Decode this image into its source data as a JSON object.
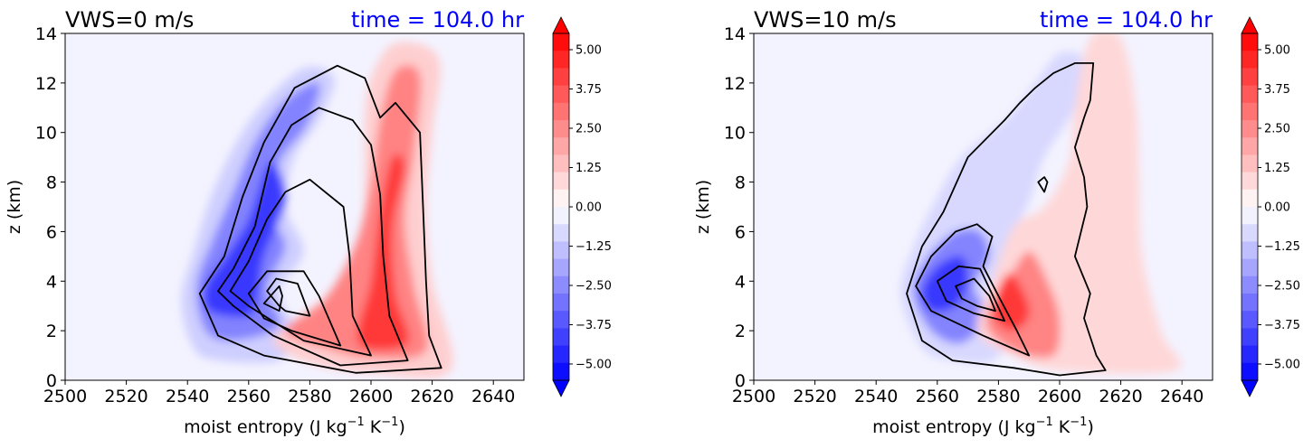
{
  "chart_data": [
    {
      "type": "heatmap",
      "title_left": "VWS=0 m/s",
      "title_right": "time = 104.0 hr",
      "xlabel": "moist entropy (J kg",
      "xlabel_sup1": "−1",
      "xlabel_mid": " K",
      "xlabel_sup2": "−1",
      "xlabel_end": ")",
      "ylabel": "z (km)",
      "xlim": [
        2500,
        2650
      ],
      "ylim": [
        0,
        14
      ],
      "xticks": [
        "2500",
        "2520",
        "2540",
        "2560",
        "2580",
        "2600",
        "2620",
        "2640"
      ],
      "yticks": [
        "0",
        "2",
        "4",
        "6",
        "8",
        "10",
        "12",
        "14"
      ],
      "colorbar_range": [
        -5,
        5
      ],
      "colorbar_ticks": [
        "5.00",
        "3.75",
        "2.50",
        "1.25",
        "0.00",
        "−1.25",
        "−2.50",
        "−3.75",
        "−5.00"
      ],
      "colors": {
        "negative": "#0000ff",
        "positive": "#ff0000",
        "background": "#f3f3ff",
        "contour": "#000000",
        "time_title": "#0000ff"
      },
      "fill_layers": [
        {
          "value": -1.0,
          "points": [
            [
              2542,
              1.3
            ],
            [
              2538,
              3.2
            ],
            [
              2542,
              5.2
            ],
            [
              2548,
              7.5
            ],
            [
              2556,
              9.6
            ],
            [
              2565,
              11.2
            ],
            [
              2578,
              12.6
            ],
            [
              2588,
              12.2
            ],
            [
              2583,
              10.5
            ],
            [
              2575,
              9.0
            ],
            [
              2572,
              7.0
            ],
            [
              2578,
              5.2
            ],
            [
              2570,
              3.6
            ],
            [
              2575,
              2.0
            ],
            [
              2570,
              0.8
            ],
            [
              2550,
              0.8
            ]
          ]
        },
        {
          "value": -2.5,
          "points": [
            [
              2546,
              2.0
            ],
            [
              2543,
              3.8
            ],
            [
              2548,
              5.6
            ],
            [
              2555,
              7.6
            ],
            [
              2562,
              9.6
            ],
            [
              2572,
              11.3
            ],
            [
              2583,
              12.0
            ],
            [
              2579,
              10.3
            ],
            [
              2570,
              8.8
            ],
            [
              2567,
              6.8
            ],
            [
              2572,
              5.4
            ],
            [
              2566,
              3.7
            ],
            [
              2570,
              2.2
            ],
            [
              2555,
              1.6
            ]
          ]
        },
        {
          "value": -4.0,
          "points": [
            [
              2547,
              2.8
            ],
            [
              2546,
              3.8
            ],
            [
              2552,
              4.9
            ],
            [
              2560,
              6.5
            ],
            [
              2567,
              8.8
            ],
            [
              2572,
              7.3
            ],
            [
              2565,
              5.0
            ],
            [
              2563,
              3.5
            ],
            [
              2560,
              2.6
            ]
          ]
        },
        {
          "value": 1.0,
          "points": [
            [
              2568,
              1.6
            ],
            [
              2578,
              2.6
            ],
            [
              2590,
              4.0
            ],
            [
              2597,
              6.0
            ],
            [
              2598,
              8.4
            ],
            [
              2598,
              10.6
            ],
            [
              2600,
              12.2
            ],
            [
              2608,
              13.6
            ],
            [
              2622,
              13.0
            ],
            [
              2620,
              10.0
            ],
            [
              2618,
              7.0
            ],
            [
              2620,
              4.0
            ],
            [
              2626,
              0.4
            ],
            [
              2600,
              0.3
            ],
            [
              2580,
              0.7
            ]
          ]
        },
        {
          "value": 2.5,
          "points": [
            [
              2572,
              2.0
            ],
            [
              2585,
              3.3
            ],
            [
              2595,
              5.5
            ],
            [
              2600,
              8.0
            ],
            [
              2603,
              10.5
            ],
            [
              2608,
              12.5
            ],
            [
              2616,
              12.3
            ],
            [
              2614,
              9.2
            ],
            [
              2611,
              6.5
            ],
            [
              2614,
              3.8
            ],
            [
              2618,
              1.2
            ],
            [
              2600,
              0.9
            ],
            [
              2585,
              1.3
            ]
          ]
        },
        {
          "value": 4.0,
          "points": [
            [
              2596,
              1.5
            ],
            [
              2600,
              4.0
            ],
            [
              2603,
              6.8
            ],
            [
              2607,
              9.0
            ],
            [
              2611,
              8.6
            ],
            [
              2607,
              6.2
            ],
            [
              2608,
              3.5
            ],
            [
              2612,
              1.5
            ]
          ]
        }
      ],
      "contours": [
        [
          [
            2550,
            1.8
          ],
          [
            2544,
            3.5
          ],
          [
            2552,
            5.0
          ],
          [
            2558,
            7.4
          ],
          [
            2565,
            9.6
          ],
          [
            2575,
            11.8
          ],
          [
            2589,
            12.7
          ],
          [
            2598,
            12.2
          ],
          [
            2603,
            10.6
          ],
          [
            2608,
            11.2
          ],
          [
            2616,
            10.0
          ],
          [
            2617,
            7.0
          ],
          [
            2618,
            4.0
          ],
          [
            2619,
            1.8
          ],
          [
            2623,
            0.5
          ],
          [
            2595,
            0.3
          ],
          [
            2565,
            1.0
          ],
          [
            2550,
            1.8
          ]
        ],
        [
          [
            2555,
            3.0
          ],
          [
            2550,
            3.6
          ],
          [
            2555,
            4.5
          ],
          [
            2562,
            6.2
          ],
          [
            2567,
            8.8
          ],
          [
            2574,
            10.3
          ],
          [
            2583,
            11.0
          ],
          [
            2594,
            10.5
          ],
          [
            2600,
            9.5
          ],
          [
            2603,
            7.5
          ],
          [
            2604,
            5.0
          ],
          [
            2606,
            2.6
          ],
          [
            2612,
            0.8
          ],
          [
            2590,
            0.6
          ],
          [
            2568,
            1.8
          ],
          [
            2555,
            3.0
          ]
        ],
        [
          [
            2560,
            3.0
          ],
          [
            2554,
            3.6
          ],
          [
            2560,
            4.8
          ],
          [
            2566,
            6.5
          ],
          [
            2572,
            7.6
          ],
          [
            2580,
            8.1
          ],
          [
            2591,
            7.0
          ],
          [
            2593,
            5.0
          ],
          [
            2594,
            2.6
          ],
          [
            2600,
            1.0
          ],
          [
            2578,
            1.6
          ],
          [
            2560,
            3.0
          ]
        ],
        [
          [
            2565,
            2.5
          ],
          [
            2560,
            3.5
          ],
          [
            2566,
            4.4
          ],
          [
            2578,
            4.4
          ],
          [
            2583,
            3.4
          ],
          [
            2590,
            1.4
          ],
          [
            2574,
            2.0
          ],
          [
            2565,
            2.5
          ]
        ],
        [
          [
            2570,
            3.0
          ],
          [
            2566,
            3.6
          ],
          [
            2569,
            4.1
          ],
          [
            2576,
            3.9
          ],
          [
            2580,
            2.6
          ],
          [
            2572,
            2.8
          ],
          [
            2570,
            3.0
          ]
        ],
        [
          [
            2565,
            3.1
          ],
          [
            2570,
            3.8
          ],
          [
            2571,
            3.4
          ],
          [
            2570,
            2.8
          ],
          [
            2565,
            3.1
          ]
        ]
      ]
    },
    {
      "type": "heatmap",
      "title_left": "VWS=10 m/s",
      "title_right": "time = 104.0 hr",
      "xlabel": "moist entropy (J kg",
      "xlabel_sup1": "−1",
      "xlabel_mid": " K",
      "xlabel_sup2": "−1",
      "xlabel_end": ")",
      "ylabel": "z (km)",
      "xlim": [
        2500,
        2650
      ],
      "ylim": [
        0,
        14
      ],
      "xticks": [
        "2500",
        "2520",
        "2540",
        "2560",
        "2580",
        "2600",
        "2620",
        "2640"
      ],
      "yticks": [
        "0",
        "2",
        "4",
        "6",
        "8",
        "10",
        "12",
        "14"
      ],
      "colorbar_range": [
        -5,
        5
      ],
      "colorbar_ticks": [
        "5.00",
        "3.75",
        "2.50",
        "1.25",
        "0.00",
        "−1.25",
        "−2.50",
        "−3.75",
        "−5.00"
      ],
      "colors": {
        "negative": "#0000ff",
        "positive": "#ff0000",
        "background": "#f3f3ff",
        "contour": "#000000",
        "time_title": "#0000ff"
      },
      "fill_layers": [
        {
          "value": -0.8,
          "points": [
            [
              2555,
              1.3
            ],
            [
              2548,
              3.5
            ],
            [
              2553,
              5.6
            ],
            [
              2560,
              7.4
            ],
            [
              2568,
              9.0
            ],
            [
              2583,
              10.6
            ],
            [
              2592,
              12.0
            ],
            [
              2600,
              13.2
            ],
            [
              2608,
              12.9
            ],
            [
              2605,
              11.0
            ],
            [
              2595,
              9.0
            ],
            [
              2590,
              7.2
            ],
            [
              2585,
              6.0
            ],
            [
              2580,
              4.5
            ],
            [
              2576,
              3.4
            ],
            [
              2584,
              2.0
            ],
            [
              2578,
              0.8
            ],
            [
              2565,
              0.8
            ]
          ]
        },
        {
          "value": -2.5,
          "points": [
            [
              2558,
              2.0
            ],
            [
              2552,
              3.6
            ],
            [
              2557,
              5.0
            ],
            [
              2566,
              6.0
            ],
            [
              2574,
              6.0
            ],
            [
              2577,
              5.0
            ],
            [
              2572,
              3.8
            ],
            [
              2576,
              2.6
            ],
            [
              2568,
              1.5
            ]
          ]
        },
        {
          "value": -4.0,
          "points": [
            [
              2558,
              2.8
            ],
            [
              2555,
              3.6
            ],
            [
              2560,
              4.6
            ],
            [
              2568,
              5.0
            ],
            [
              2570,
              4.0
            ],
            [
              2566,
              3.0
            ]
          ]
        },
        {
          "value": 0.8,
          "points": [
            [
              2573,
              2.0
            ],
            [
              2578,
              4.0
            ],
            [
              2585,
              6.2
            ],
            [
              2595,
              7.0
            ],
            [
              2603,
              8.8
            ],
            [
              2605,
              11.0
            ],
            [
              2610,
              13.8
            ],
            [
              2620,
              13.8
            ],
            [
              2625,
              11.0
            ],
            [
              2626,
              8.0
            ],
            [
              2627,
              5.0
            ],
            [
              2633,
              2.0
            ],
            [
              2638,
              0.4
            ],
            [
              2600,
              0.4
            ],
            [
              2585,
              1.0
            ]
          ]
        },
        {
          "value": 2.5,
          "points": [
            [
              2576,
              2.3
            ],
            [
              2583,
              4.0
            ],
            [
              2590,
              5.2
            ],
            [
              2596,
              4.0
            ],
            [
              2600,
              2.5
            ],
            [
              2598,
              1.0
            ],
            [
              2585,
              1.2
            ]
          ]
        },
        {
          "value": 4.0,
          "points": [
            [
              2578,
              2.8
            ],
            [
              2583,
              4.3
            ],
            [
              2588,
              3.6
            ],
            [
              2590,
              2.6
            ],
            [
              2584,
              2.0
            ]
          ]
        }
      ],
      "contours": [
        [
          [
            2565,
            0.8
          ],
          [
            2555,
            1.6
          ],
          [
            2550,
            3.5
          ],
          [
            2555,
            5.4
          ],
          [
            2562,
            6.8
          ],
          [
            2570,
            9.0
          ],
          [
            2582,
            10.5
          ],
          [
            2587,
            11.2
          ],
          [
            2592,
            11.8
          ],
          [
            2598,
            12.4
          ],
          [
            2605,
            12.8
          ],
          [
            2611,
            12.8
          ],
          [
            2610,
            11.3
          ],
          [
            2608,
            10.6
          ],
          [
            2605,
            9.4
          ],
          [
            2608,
            8.2
          ],
          [
            2609,
            7.0
          ],
          [
            2605,
            5.0
          ],
          [
            2610,
            3.5
          ],
          [
            2608,
            2.5
          ],
          [
            2612,
            1.0
          ],
          [
            2615,
            0.4
          ],
          [
            2600,
            0.2
          ],
          [
            2585,
            0.5
          ],
          [
            2565,
            0.8
          ]
        ],
        [
          [
            2558,
            2.8
          ],
          [
            2553,
            3.8
          ],
          [
            2558,
            5.0
          ],
          [
            2566,
            6.0
          ],
          [
            2573,
            6.3
          ],
          [
            2578,
            5.8
          ],
          [
            2575,
            4.6
          ],
          [
            2580,
            3.4
          ],
          [
            2586,
            2.0
          ],
          [
            2590,
            1.0
          ],
          [
            2575,
            1.8
          ],
          [
            2558,
            2.8
          ]
        ],
        [
          [
            2563,
            3.2
          ],
          [
            2560,
            4.0
          ],
          [
            2567,
            4.6
          ],
          [
            2574,
            4.5
          ],
          [
            2579,
            3.2
          ],
          [
            2582,
            2.4
          ],
          [
            2572,
            2.7
          ],
          [
            2563,
            3.2
          ]
        ],
        [
          [
            2568,
            3.3
          ],
          [
            2566,
            3.8
          ],
          [
            2572,
            4.1
          ],
          [
            2577,
            3.4
          ],
          [
            2579,
            2.8
          ],
          [
            2573,
            3.0
          ],
          [
            2568,
            3.3
          ]
        ],
        [
          [
            2593,
            8.0
          ],
          [
            2595,
            8.2
          ],
          [
            2596,
            8.0
          ],
          [
            2595,
            7.6
          ],
          [
            2593,
            8.0
          ]
        ]
      ]
    }
  ]
}
